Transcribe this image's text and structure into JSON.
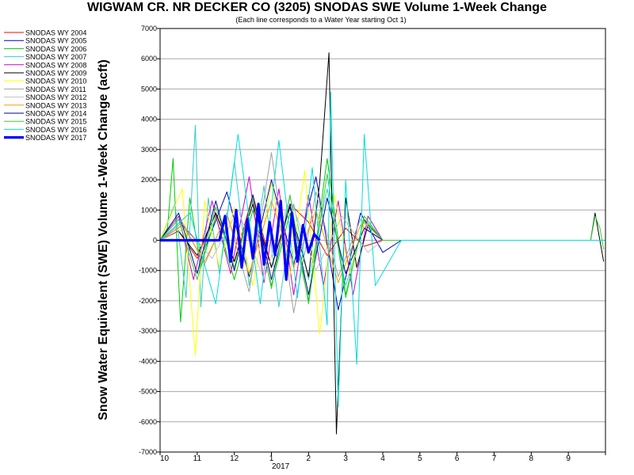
{
  "chart_data": {
    "type": "line",
    "title": "WIGWAM CR. NR DECKER CO (3205) SNODAS SWE Volume 1-Week Change",
    "subtitle": "(Each line corresponds to a Water Year starting Oct 1)",
    "ylabel": "Snow Water Equivalent (SWE) Volume 1-Week Change (acft)",
    "xlabel": "",
    "x_year_label": "2017",
    "ylim": [
      -7000,
      7000
    ],
    "yticks": [
      7000,
      6000,
      5000,
      4000,
      3000,
      2000,
      1000,
      0,
      -1000,
      -2000,
      -3000,
      -4000,
      -5000,
      -6000,
      -7000
    ],
    "x_months": [
      "10",
      "11",
      "12",
      "1",
      "2",
      "3",
      "4",
      "5",
      "6",
      "7",
      "8",
      "9"
    ],
    "grid": true,
    "legend_position": "top-left",
    "series": [
      {
        "name": "SNODAS WY 2004",
        "color": "#ff0000",
        "x": [
          0.0,
          0.5,
          1.0,
          1.5,
          2.0,
          2.5,
          3.0,
          3.5,
          4.0,
          4.5,
          5.0,
          5.5,
          6.0
        ],
        "y": [
          0,
          300,
          -600,
          900,
          -700,
          1500,
          -900,
          1200,
          600,
          -500,
          400,
          -200,
          0
        ]
      },
      {
        "name": "SNODAS WY 2005",
        "color": "#0000cc",
        "x": [
          0.0,
          0.6,
          1.2,
          1.8,
          2.4,
          3.0,
          3.6,
          4.2,
          4.8,
          5.4,
          6.0,
          6.5
        ],
        "y": [
          0,
          500,
          -300,
          1600,
          -1200,
          2000,
          -800,
          2100,
          -2300,
          900,
          -400,
          0
        ]
      },
      {
        "name": "SNODAS WY 2006",
        "color": "#00cc00",
        "x": [
          0.0,
          0.2,
          0.35,
          0.55,
          0.8,
          1.1,
          1.5,
          2.0,
          2.5,
          3.0,
          3.5,
          4.0,
          4.5,
          5.0,
          5.5,
          6.0
        ],
        "y": [
          0,
          400,
          2700,
          -2700,
          1400,
          -900,
          800,
          -1300,
          1000,
          -1500,
          900,
          -2000,
          2700,
          -1800,
          700,
          0
        ]
      },
      {
        "name": "SNODAS WY 2007",
        "color": "#33cccc",
        "x": [
          0.0,
          0.4,
          0.7,
          0.95,
          1.1,
          1.3,
          1.6,
          2.0,
          2.4,
          2.8,
          3.2,
          3.6,
          4.0,
          4.5,
          5.0,
          5.5,
          6.0
        ],
        "y": [
          0,
          1200,
          -1900,
          3800,
          -2200,
          1400,
          -1100,
          2600,
          -1500,
          1800,
          -2200,
          1200,
          -1300,
          1700,
          -1500,
          600,
          0
        ]
      },
      {
        "name": "SNODAS WY 2008",
        "color": "#cc00cc",
        "x": [
          0.0,
          0.5,
          0.9,
          1.4,
          1.9,
          2.4,
          2.8,
          3.2,
          3.6,
          4.0,
          4.4,
          4.8,
          5.2,
          5.6,
          6.0
        ],
        "y": [
          0,
          800,
          -1300,
          1300,
          -1100,
          2100,
          -1400,
          1700,
          -1800,
          1500,
          -1500,
          1300,
          -1800,
          800,
          0
        ]
      },
      {
        "name": "SNODAS WY 2009",
        "color": "#000000",
        "x": [
          0.0,
          0.5,
          1.0,
          1.5,
          2.0,
          2.5,
          3.0,
          3.5,
          4.0,
          4.3,
          4.55,
          4.75,
          5.0,
          5.3,
          5.6,
          6.0,
          11.6,
          11.72,
          11.82,
          11.95
        ],
        "y": [
          0,
          300,
          -500,
          900,
          -700,
          1200,
          -900,
          1100,
          -1200,
          1900,
          6200,
          -6400,
          1400,
          -900,
          500,
          0,
          0,
          900,
          200,
          -700
        ]
      },
      {
        "name": "SNODAS WY 2010",
        "color": "#ffff00",
        "x": [
          0.0,
          0.6,
          0.95,
          1.2,
          1.6,
          2.0,
          2.5,
          3.0,
          3.5,
          3.9,
          4.3,
          4.7,
          5.1,
          5.5,
          6.0
        ],
        "y": [
          0,
          1700,
          -3800,
          1300,
          -900,
          1100,
          -1500,
          1900,
          -1200,
          2300,
          -3100,
          1500,
          -1100,
          600,
          0
        ]
      },
      {
        "name": "SNODAS WY 2011",
        "color": "#a0a0a0",
        "x": [
          0.0,
          0.6,
          1.2,
          1.8,
          2.4,
          3.0,
          3.6,
          4.2,
          4.8,
          5.4,
          6.0
        ],
        "y": [
          0,
          600,
          -800,
          900,
          -1700,
          2900,
          -2400,
          1600,
          -1200,
          700,
          0
        ]
      },
      {
        "name": "SNODAS WY 2012",
        "color": "#c0c0c0",
        "x": [
          0.0,
          0.7,
          1.4,
          2.1,
          2.8,
          3.5,
          4.2,
          4.9,
          5.6,
          6.0
        ],
        "y": [
          0,
          400,
          -600,
          1000,
          -1300,
          1400,
          -1000,
          800,
          -400,
          0
        ]
      },
      {
        "name": "SNODAS WY 2013",
        "color": "#ff9900",
        "x": [
          0.0,
          0.6,
          1.2,
          1.8,
          2.4,
          3.0,
          3.6,
          4.2,
          4.8,
          5.4,
          6.0
        ],
        "y": [
          0,
          500,
          -700,
          800,
          -1100,
          1300,
          -900,
          1000,
          -1400,
          500,
          0
        ]
      },
      {
        "name": "SNODAS WY 2014",
        "color": "#000099",
        "x": [
          0.0,
          0.5,
          1.0,
          1.5,
          2.0,
          2.5,
          3.0,
          3.5,
          4.0,
          4.5,
          5.0,
          5.5,
          6.0
        ],
        "y": [
          0,
          900,
          -1100,
          1300,
          -1000,
          1500,
          -1300,
          1200,
          -1800,
          1400,
          -1100,
          400,
          0
        ]
      },
      {
        "name": "SNODAS WY 2015",
        "color": "#33cc33",
        "x": [
          0.0,
          0.5,
          1.0,
          1.5,
          2.0,
          2.5,
          3.0,
          3.5,
          4.0,
          4.5,
          5.0,
          5.5,
          6.0,
          11.6,
          11.72,
          11.85,
          11.95
        ],
        "y": [
          0,
          700,
          -1300,
          1100,
          -900,
          1400,
          -1600,
          1500,
          -2100,
          2200,
          -1900,
          800,
          0,
          0,
          800,
          400,
          -300
        ]
      },
      {
        "name": "SNODAS WY 2016",
        "color": "#00dddd",
        "x": [
          0.0,
          0.8,
          1.5,
          2.1,
          2.7,
          3.2,
          3.7,
          4.1,
          4.5,
          4.6,
          4.8,
          5.0,
          5.3,
          5.5,
          5.8,
          6.5,
          12.0
        ],
        "y": [
          0,
          900,
          -2100,
          3500,
          -2100,
          3300,
          -1900,
          2400,
          -2800,
          4900,
          -5500,
          2000,
          -4100,
          3500,
          -1500,
          0,
          0
        ]
      },
      {
        "name": "SNODAS WY 2017",
        "color": "#0000ff",
        "thick": true,
        "x": [
          0.0,
          1.6,
          1.75,
          1.9,
          2.05,
          2.2,
          2.35,
          2.5,
          2.65,
          2.8,
          2.95,
          3.1,
          3.25,
          3.4,
          3.55,
          3.7,
          3.85,
          4.0,
          4.15,
          4.3
        ],
        "y": [
          0,
          0,
          800,
          -700,
          1000,
          -900,
          700,
          -600,
          1200,
          -800,
          600,
          -500,
          1300,
          -1300,
          900,
          -700,
          500,
          -400,
          200,
          0
        ]
      }
    ]
  }
}
